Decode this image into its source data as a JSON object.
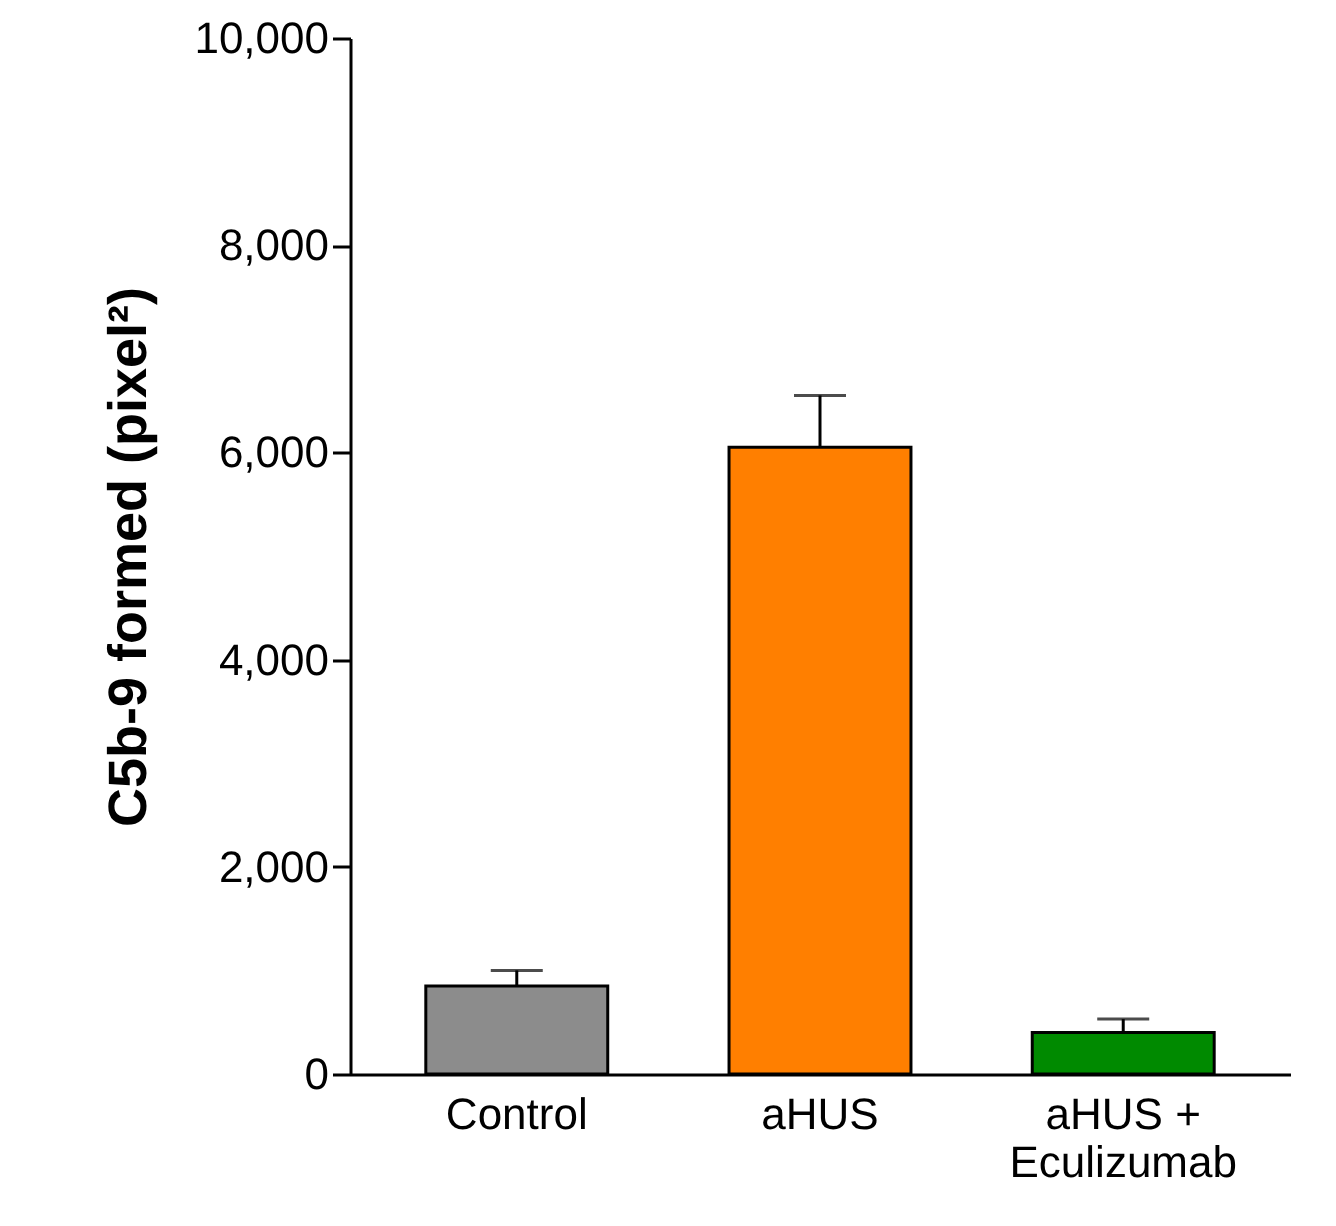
{
  "chart_data": {
    "type": "bar",
    "ylabel": "C5b-9 formed (pixel²)",
    "categories": [
      "Control",
      "aHUS",
      "aHUS + Eculizumab"
    ],
    "values": [
      850,
      6050,
      400
    ],
    "colors": [
      "#8c8c8c",
      "#ff7f00",
      "#008a00"
    ],
    "errors": [
      [
        850,
        1000
      ],
      [
        6050,
        6550
      ],
      [
        400,
        530
      ]
    ],
    "ylim": [
      0,
      10000
    ],
    "yticks": [
      {
        "value": 0,
        "label": "0"
      },
      {
        "value": 2000,
        "label": "2,000"
      },
      {
        "value": 4000,
        "label": "4,000"
      },
      {
        "value": 6000,
        "label": "6,000"
      },
      {
        "value": 8000,
        "label": "8,000"
      },
      {
        "value": 10000,
        "label": "10,000"
      }
    ],
    "grid": false
  }
}
